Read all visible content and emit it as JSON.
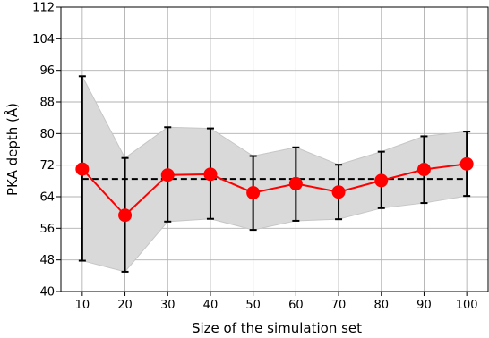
{
  "chart_data": {
    "type": "line",
    "xlabel": "Size of the simulation set",
    "ylabel": "PKA depth (Å)",
    "x": [
      10,
      20,
      30,
      40,
      50,
      60,
      70,
      80,
      90,
      100
    ],
    "xticks": [
      "10",
      "20",
      "30",
      "40",
      "50",
      "60",
      "70",
      "80",
      "90",
      "100"
    ],
    "yticks": [
      "40",
      "48",
      "56",
      "64",
      "72",
      "80",
      "88",
      "96",
      "104",
      "112"
    ],
    "ylim": [
      40,
      112
    ],
    "xlim": [
      5,
      105
    ],
    "grid": true,
    "series": [
      {
        "values": [
          71.0,
          59.3,
          69.5,
          69.7,
          65.0,
          67.3,
          65.2,
          68.1,
          70.9,
          72.3
        ],
        "error_low": [
          47.8,
          45.0,
          57.7,
          58.4,
          55.6,
          57.9,
          58.3,
          61.1,
          62.4,
          64.2
        ],
        "error_high": [
          94.5,
          73.8,
          81.6,
          81.3,
          74.3,
          76.5,
          72.1,
          75.4,
          79.3,
          80.5
        ]
      }
    ],
    "reference_line": 68.5,
    "colors": {
      "series": "#ff0000",
      "error_band": "#d9d9d9",
      "error_bars": "#000000",
      "reference_line": "#000000",
      "grid": "#b0b0b0"
    }
  }
}
